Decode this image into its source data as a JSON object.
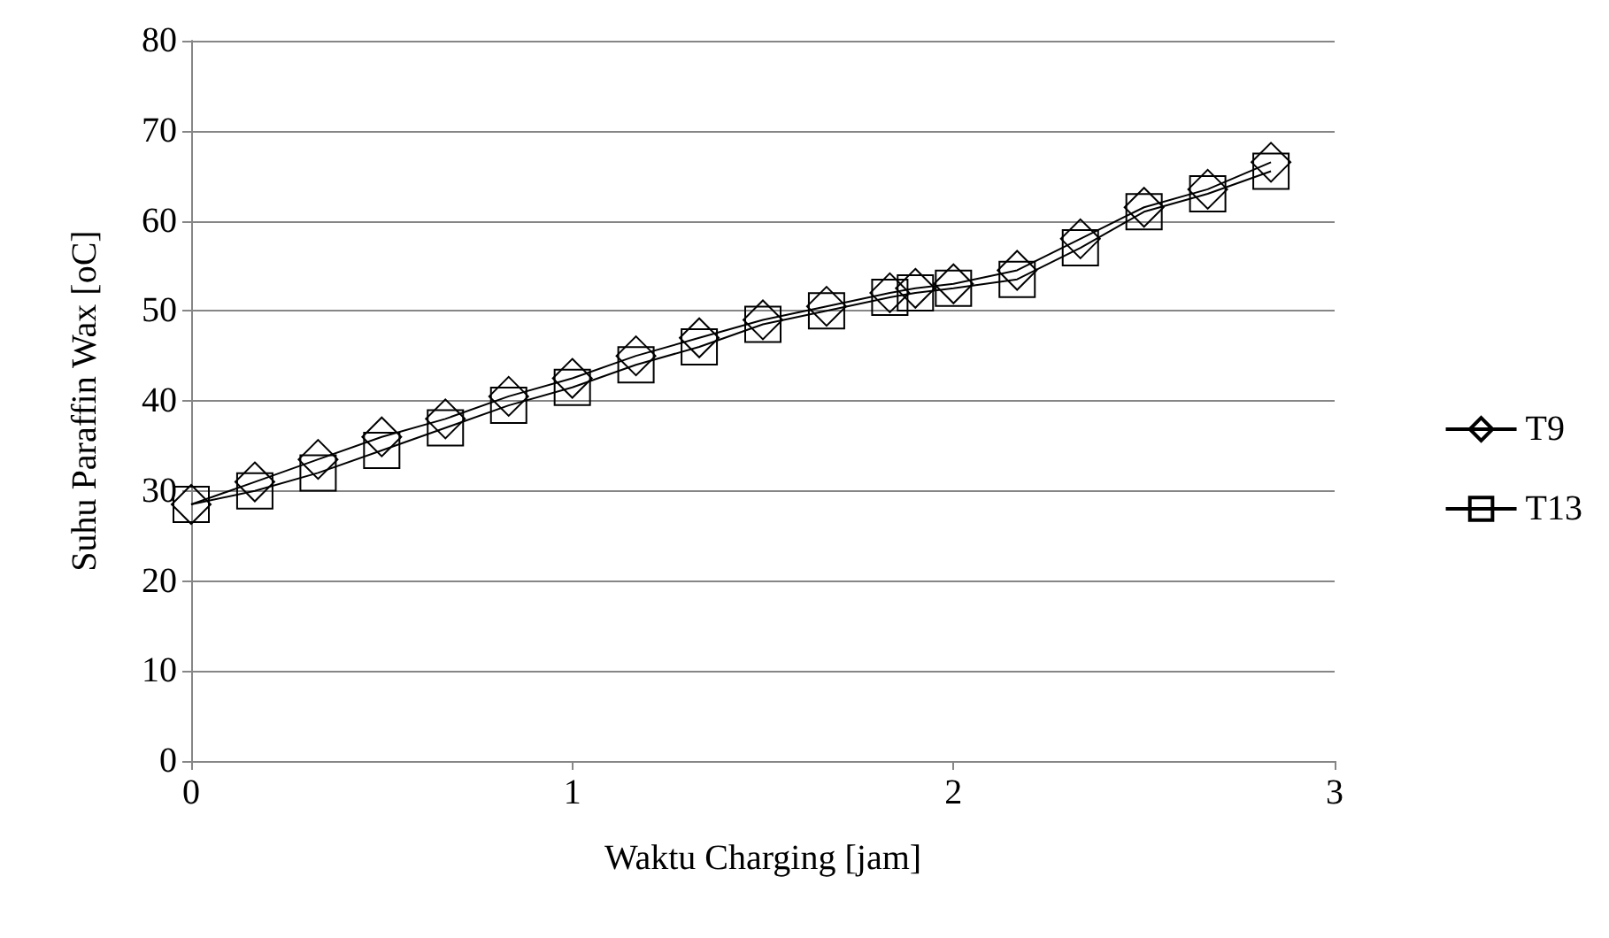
{
  "chart_data": {
    "type": "line",
    "xlabel": "Waktu Charging [jam]",
    "ylabel": "Suhu Paraffin Wax [oC]",
    "xlim": [
      0,
      3
    ],
    "xticks": [
      0,
      1,
      2,
      3
    ],
    "ylim": [
      0,
      80
    ],
    "yticks": [
      0,
      10,
      20,
      30,
      40,
      50,
      60,
      70,
      80
    ],
    "grid": "y",
    "legend": "right",
    "x": [
      0,
      0.167,
      0.333,
      0.5,
      0.667,
      0.833,
      1,
      1.167,
      1.333,
      1.5,
      1.667,
      1.833,
      1.9,
      2,
      2.167,
      2.333,
      2.5,
      2.667,
      2.833
    ],
    "series": [
      {
        "name": "T9",
        "color": "#000000",
        "marker": "diamond",
        "values": [
          28.5,
          31,
          33.5,
          36,
          38,
          40.5,
          42.5,
          45,
          47,
          49,
          50.5,
          52,
          52.5,
          53,
          54.5,
          58,
          61.5,
          63.5,
          66.5
        ]
      },
      {
        "name": "T13",
        "color": "#000000",
        "marker": "square",
        "values": [
          28.5,
          30,
          32,
          34.5,
          37,
          39.5,
          41.5,
          44,
          46,
          48.5,
          50,
          51.5,
          52,
          52.5,
          53.5,
          57,
          61,
          63,
          65.5
        ]
      }
    ]
  }
}
